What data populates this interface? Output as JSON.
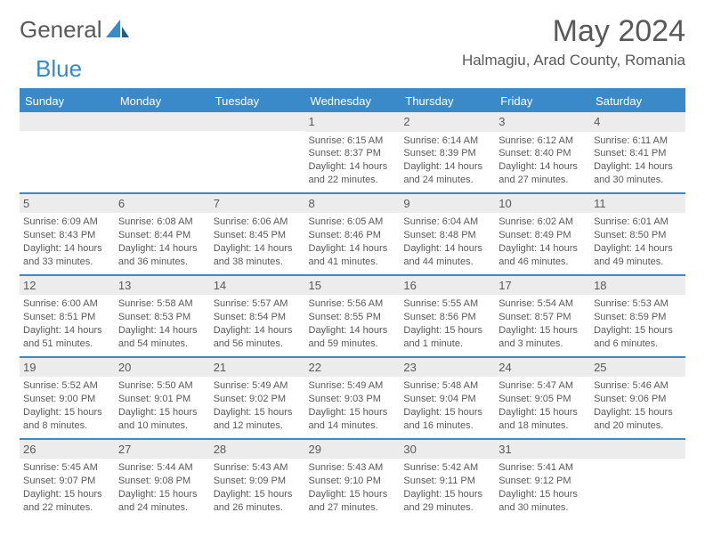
{
  "brand": {
    "word1": "General",
    "word2": "Blue"
  },
  "title": "May 2024",
  "location": "Halmagiu, Arad County, Romania",
  "colors": {
    "accent": "#3a8ac9",
    "text": "#595959",
    "daynum_bg": "#ececec",
    "background": "#ffffff",
    "header_text": "#ffffff"
  },
  "typography": {
    "title_fontsize": 34,
    "location_fontsize": 17,
    "header_fontsize": 13,
    "cell_fontsize": 11,
    "daynum_fontsize": 13
  },
  "week_headers": [
    "Sunday",
    "Monday",
    "Tuesday",
    "Wednesday",
    "Thursday",
    "Friday",
    "Saturday"
  ],
  "weeks": [
    [
      null,
      null,
      null,
      {
        "day": "1",
        "sunrise": "6:15 AM",
        "sunset": "8:37 PM",
        "daylight": "14 hours and 22 minutes."
      },
      {
        "day": "2",
        "sunrise": "6:14 AM",
        "sunset": "8:39 PM",
        "daylight": "14 hours and 24 minutes."
      },
      {
        "day": "3",
        "sunrise": "6:12 AM",
        "sunset": "8:40 PM",
        "daylight": "14 hours and 27 minutes."
      },
      {
        "day": "4",
        "sunrise": "6:11 AM",
        "sunset": "8:41 PM",
        "daylight": "14 hours and 30 minutes."
      }
    ],
    [
      {
        "day": "5",
        "sunrise": "6:09 AM",
        "sunset": "8:43 PM",
        "daylight": "14 hours and 33 minutes."
      },
      {
        "day": "6",
        "sunrise": "6:08 AM",
        "sunset": "8:44 PM",
        "daylight": "14 hours and 36 minutes."
      },
      {
        "day": "7",
        "sunrise": "6:06 AM",
        "sunset": "8:45 PM",
        "daylight": "14 hours and 38 minutes."
      },
      {
        "day": "8",
        "sunrise": "6:05 AM",
        "sunset": "8:46 PM",
        "daylight": "14 hours and 41 minutes."
      },
      {
        "day": "9",
        "sunrise": "6:04 AM",
        "sunset": "8:48 PM",
        "daylight": "14 hours and 44 minutes."
      },
      {
        "day": "10",
        "sunrise": "6:02 AM",
        "sunset": "8:49 PM",
        "daylight": "14 hours and 46 minutes."
      },
      {
        "day": "11",
        "sunrise": "6:01 AM",
        "sunset": "8:50 PM",
        "daylight": "14 hours and 49 minutes."
      }
    ],
    [
      {
        "day": "12",
        "sunrise": "6:00 AM",
        "sunset": "8:51 PM",
        "daylight": "14 hours and 51 minutes."
      },
      {
        "day": "13",
        "sunrise": "5:58 AM",
        "sunset": "8:53 PM",
        "daylight": "14 hours and 54 minutes."
      },
      {
        "day": "14",
        "sunrise": "5:57 AM",
        "sunset": "8:54 PM",
        "daylight": "14 hours and 56 minutes."
      },
      {
        "day": "15",
        "sunrise": "5:56 AM",
        "sunset": "8:55 PM",
        "daylight": "14 hours and 59 minutes."
      },
      {
        "day": "16",
        "sunrise": "5:55 AM",
        "sunset": "8:56 PM",
        "daylight": "15 hours and 1 minute."
      },
      {
        "day": "17",
        "sunrise": "5:54 AM",
        "sunset": "8:57 PM",
        "daylight": "15 hours and 3 minutes."
      },
      {
        "day": "18",
        "sunrise": "5:53 AM",
        "sunset": "8:59 PM",
        "daylight": "15 hours and 6 minutes."
      }
    ],
    [
      {
        "day": "19",
        "sunrise": "5:52 AM",
        "sunset": "9:00 PM",
        "daylight": "15 hours and 8 minutes."
      },
      {
        "day": "20",
        "sunrise": "5:50 AM",
        "sunset": "9:01 PM",
        "daylight": "15 hours and 10 minutes."
      },
      {
        "day": "21",
        "sunrise": "5:49 AM",
        "sunset": "9:02 PM",
        "daylight": "15 hours and 12 minutes."
      },
      {
        "day": "22",
        "sunrise": "5:49 AM",
        "sunset": "9:03 PM",
        "daylight": "15 hours and 14 minutes."
      },
      {
        "day": "23",
        "sunrise": "5:48 AM",
        "sunset": "9:04 PM",
        "daylight": "15 hours and 16 minutes."
      },
      {
        "day": "24",
        "sunrise": "5:47 AM",
        "sunset": "9:05 PM",
        "daylight": "15 hours and 18 minutes."
      },
      {
        "day": "25",
        "sunrise": "5:46 AM",
        "sunset": "9:06 PM",
        "daylight": "15 hours and 20 minutes."
      }
    ],
    [
      {
        "day": "26",
        "sunrise": "5:45 AM",
        "sunset": "9:07 PM",
        "daylight": "15 hours and 22 minutes."
      },
      {
        "day": "27",
        "sunrise": "5:44 AM",
        "sunset": "9:08 PM",
        "daylight": "15 hours and 24 minutes."
      },
      {
        "day": "28",
        "sunrise": "5:43 AM",
        "sunset": "9:09 PM",
        "daylight": "15 hours and 26 minutes."
      },
      {
        "day": "29",
        "sunrise": "5:43 AM",
        "sunset": "9:10 PM",
        "daylight": "15 hours and 27 minutes."
      },
      {
        "day": "30",
        "sunrise": "5:42 AM",
        "sunset": "9:11 PM",
        "daylight": "15 hours and 29 minutes."
      },
      {
        "day": "31",
        "sunrise": "5:41 AM",
        "sunset": "9:12 PM",
        "daylight": "15 hours and 30 minutes."
      },
      null
    ]
  ],
  "labels": {
    "sunrise": "Sunrise:",
    "sunset": "Sunset:",
    "daylight": "Daylight:"
  }
}
